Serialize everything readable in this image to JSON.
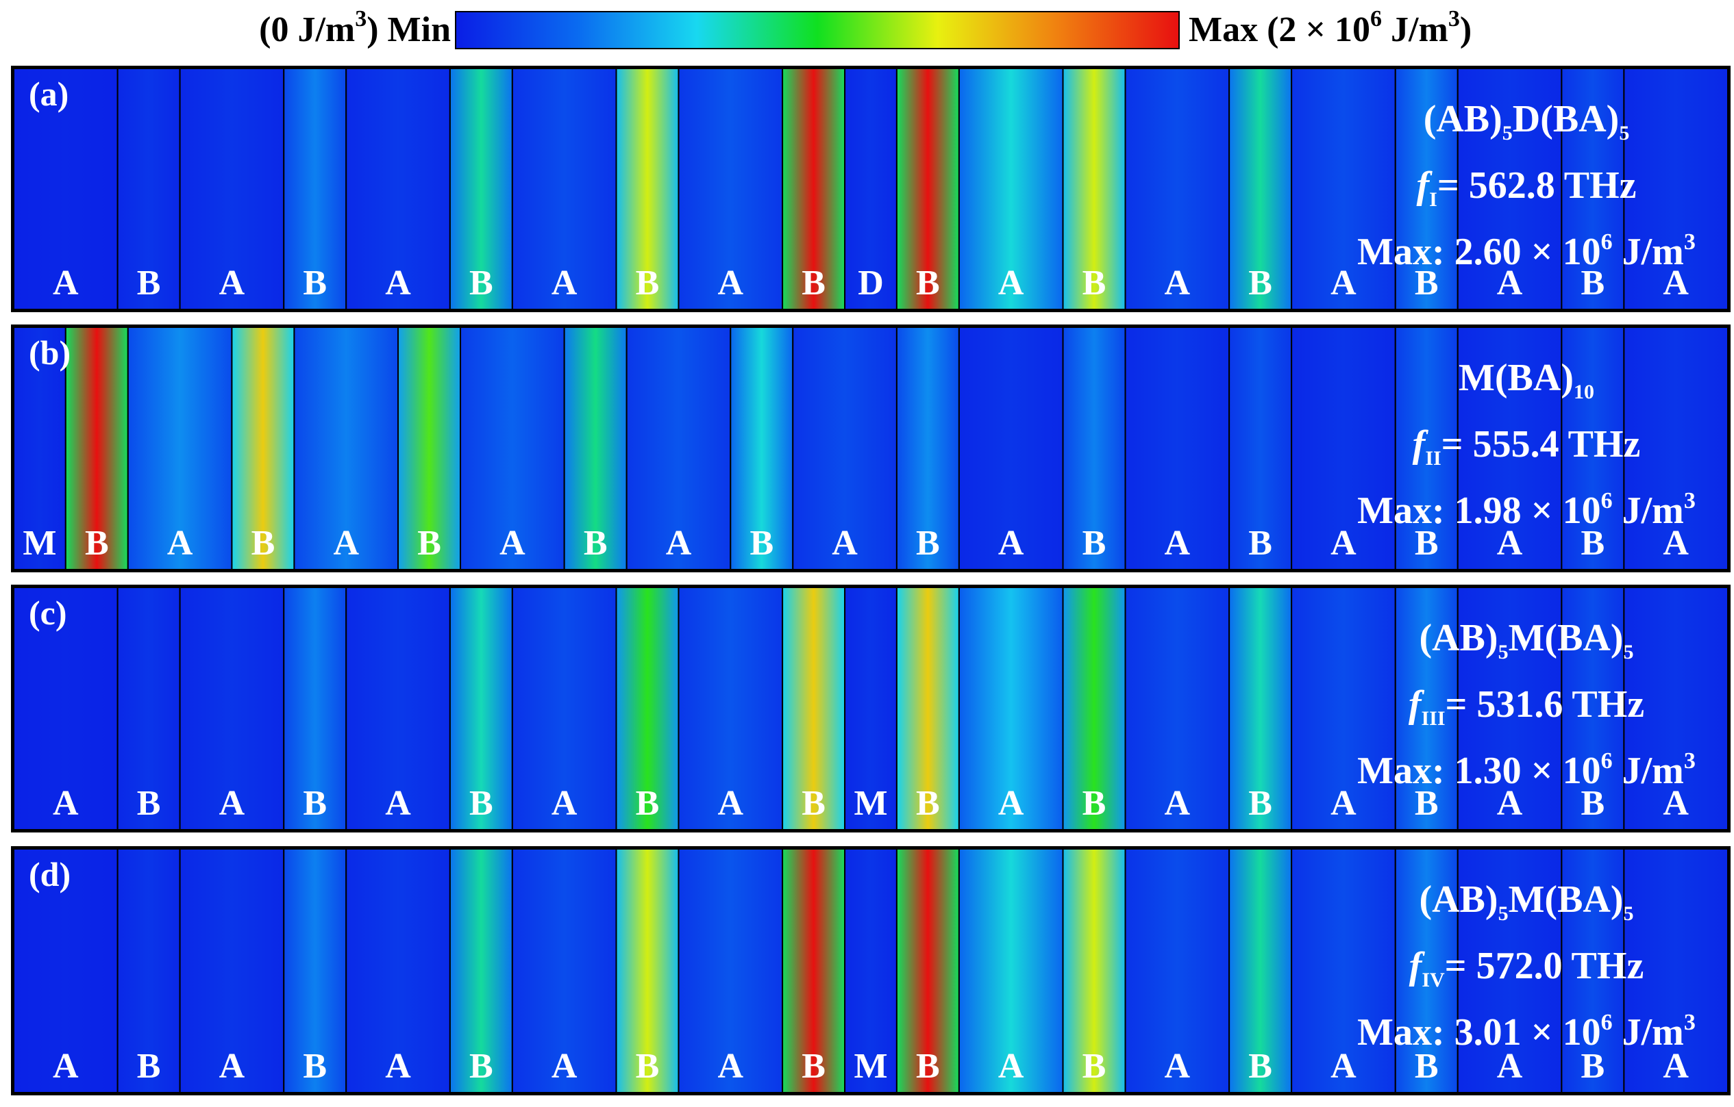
{
  "colorbar": {
    "min_value": "(0 J/m",
    "min_word": "Min",
    "max_word": "Max",
    "max_value": "(2 × 10",
    "max_unit": " J/m",
    "exp6": "6",
    "exp3": "3",
    "close": ")",
    "colors": [
      "#0a1ee6",
      "#0a6af0",
      "#18d8f0",
      "#10e020",
      "#e8f010",
      "#f08010",
      "#e81010"
    ]
  },
  "panels": [
    {
      "tag": "(a)",
      "structure_main": "(AB)",
      "structure_sub1": "5",
      "structure_mid": "D(BA)",
      "structure_sub2": "5",
      "freq_symbol": "f",
      "freq_sub": "I",
      "freq_value": "= 562.8 THz",
      "max_prefix": "Max: 2.60 × 10",
      "max_exp": "6",
      "max_unit": " J/m",
      "max_exp3": "3",
      "layers": [
        "A",
        "B",
        "A",
        "B",
        "A",
        "B",
        "A",
        "B",
        "A",
        "B",
        "D",
        "B",
        "A",
        "B",
        "A",
        "B",
        "A",
        "B",
        "A",
        "B",
        "A"
      ],
      "intensity": [
        0.02,
        0.05,
        0.05,
        0.2,
        0.06,
        0.4,
        0.1,
        0.65,
        0.12,
        1.0,
        0.05,
        1.0,
        0.35,
        0.65,
        0.1,
        0.4,
        0.1,
        0.2,
        0.05,
        0.1,
        0.05
      ]
    },
    {
      "tag": "(b)",
      "structure_main": "M(BA)",
      "structure_sub1": "10",
      "structure_mid": "",
      "structure_sub2": "",
      "freq_symbol": "f",
      "freq_sub": "II",
      "freq_value": "= 555.4 THz",
      "max_prefix": "Max: 1.98 × 10",
      "max_exp": "6",
      "max_unit": " J/m",
      "max_exp3": "3",
      "layers": [
        "M",
        "B",
        "A",
        "B",
        "A",
        "B",
        "A",
        "B",
        "A",
        "B",
        "A",
        "B",
        "A",
        "B",
        "A",
        "B",
        "A",
        "B",
        "A",
        "B",
        "A"
      ],
      "intensity": [
        0.04,
        1.0,
        0.22,
        0.72,
        0.2,
        0.55,
        0.15,
        0.42,
        0.12,
        0.35,
        0.1,
        0.22,
        0.05,
        0.2,
        0.06,
        0.12,
        0.05,
        0.15,
        0.05,
        0.1,
        0.05
      ]
    },
    {
      "tag": "(c)",
      "structure_main": "(AB)",
      "structure_sub1": "5",
      "structure_mid": "M(BA)",
      "structure_sub2": "5",
      "freq_symbol": "f",
      "freq_sub": "III",
      "freq_value": "= 531.6 THz",
      "max_prefix": "Max: 1.30 × 10",
      "max_exp": "6",
      "max_unit": " J/m",
      "max_exp3": "3",
      "layers": [
        "A",
        "B",
        "A",
        "B",
        "A",
        "B",
        "A",
        "B",
        "A",
        "B",
        "M",
        "B",
        "A",
        "B",
        "A",
        "B",
        "A",
        "B",
        "A",
        "B",
        "A"
      ],
      "intensity": [
        0.02,
        0.05,
        0.05,
        0.2,
        0.06,
        0.38,
        0.1,
        0.52,
        0.12,
        0.72,
        0.05,
        0.72,
        0.3,
        0.52,
        0.1,
        0.38,
        0.1,
        0.2,
        0.05,
        0.1,
        0.05
      ]
    },
    {
      "tag": "(d)",
      "structure_main": "(AB)",
      "structure_sub1": "5",
      "structure_mid": "M(BA)",
      "structure_sub2": "5",
      "freq_symbol": "f",
      "freq_sub": "IV",
      "freq_value": "= 572.0 THz",
      "max_prefix": "Max: 3.01 × 10",
      "max_exp": "6",
      "max_unit": " J/m",
      "max_exp3": "3",
      "layers": [
        "A",
        "B",
        "A",
        "B",
        "A",
        "B",
        "A",
        "B",
        "A",
        "B",
        "M",
        "B",
        "A",
        "B",
        "A",
        "B",
        "A",
        "B",
        "A",
        "B",
        "A"
      ],
      "intensity": [
        0.02,
        0.05,
        0.05,
        0.2,
        0.06,
        0.4,
        0.1,
        0.65,
        0.12,
        1.0,
        0.05,
        1.0,
        0.35,
        0.65,
        0.1,
        0.4,
        0.1,
        0.2,
        0.05,
        0.1,
        0.05
      ]
    }
  ]
}
